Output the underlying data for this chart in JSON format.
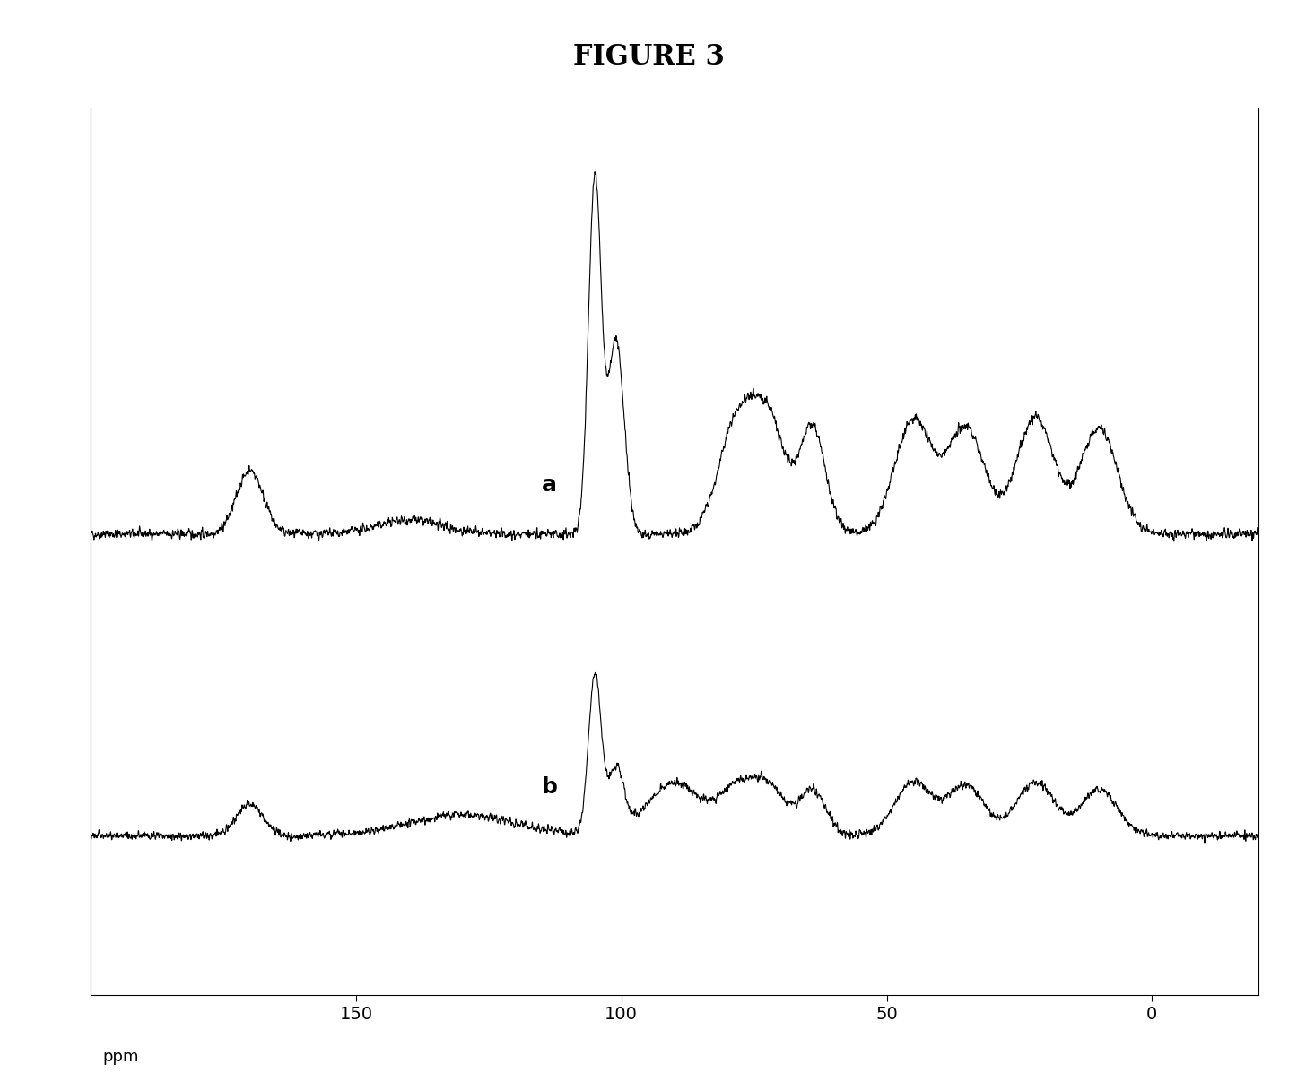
{
  "title": "FIGURE 3",
  "title_fontsize": 22,
  "title_fontweight": "bold",
  "background_color": "#ffffff",
  "line_color": "#000000",
  "xlabel": "ppm",
  "x_ticks": [
    150,
    100,
    50,
    0
  ],
  "x_tick_labels": [
    "150",
    "100",
    "50",
    "0"
  ],
  "xmin": 200,
  "xmax": -20,
  "label_a": "a",
  "label_b": "b",
  "label_fontsize": 18,
  "label_fontweight": "bold"
}
